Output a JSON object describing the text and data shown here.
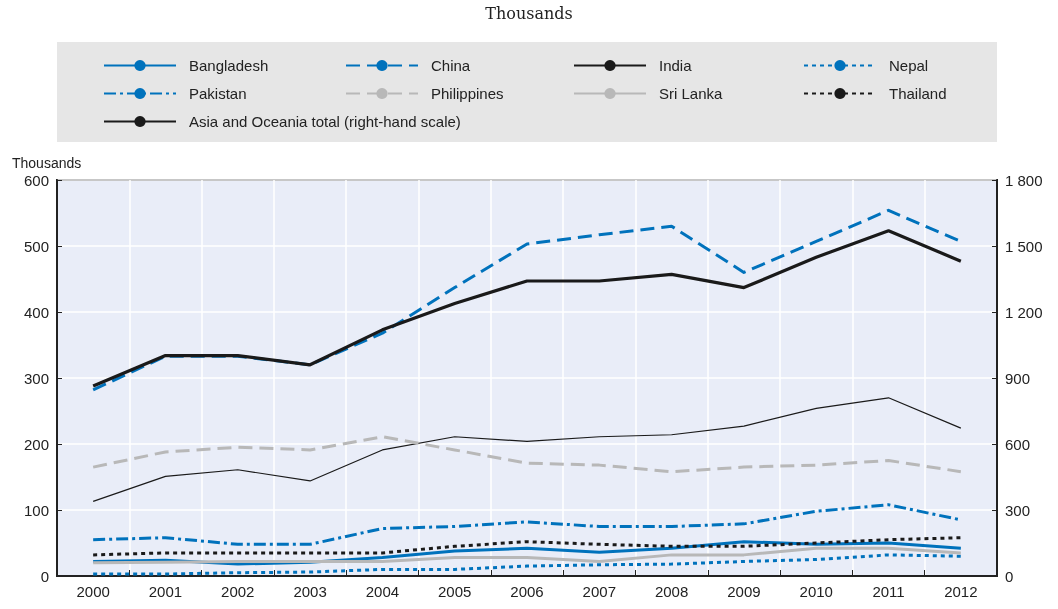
{
  "chart_data": {
    "type": "line",
    "subtitle": "Thousands",
    "ylabel": "Thousands",
    "categories": [
      "2000",
      "2001",
      "2002",
      "2003",
      "2004",
      "2005",
      "2006",
      "2007",
      "2008",
      "2009",
      "2010",
      "2011",
      "2012"
    ],
    "series": [
      {
        "name": "Bangladesh",
        "color": "#0072bc",
        "line_style": "solid",
        "values": [
          22,
          24,
          18,
          21,
          28,
          38,
          42,
          36,
          42,
          52,
          48,
          50,
          42
        ]
      },
      {
        "name": "China",
        "color": "#0072bc",
        "line_style": "dashed",
        "values": [
          282,
          333,
          333,
          320,
          368,
          437,
          503,
          517,
          530,
          460,
          507,
          554,
          507
        ]
      },
      {
        "name": "India",
        "color": "#1a1a1a",
        "line_style": "solid",
        "values": [
          113,
          151,
          161,
          144,
          191,
          211,
          204,
          211,
          214,
          227,
          254,
          270,
          224
        ]
      },
      {
        "name": "Nepal",
        "color": "#0072bc",
        "line_style": "dotted",
        "values": [
          3,
          3,
          5,
          6,
          10,
          10,
          15,
          17,
          18,
          22,
          25,
          32,
          30
        ]
      },
      {
        "name": "Pakistan",
        "color": "#0072bc",
        "line_style": "dashdot",
        "values": [
          55,
          58,
          48,
          48,
          72,
          75,
          82,
          75,
          75,
          79,
          98,
          108,
          85
        ]
      },
      {
        "name": "Philippines",
        "color": "#b8b8b8",
        "line_style": "dashed",
        "values": [
          165,
          188,
          195,
          191,
          211,
          191,
          171,
          168,
          158,
          165,
          168,
          175,
          158
        ]
      },
      {
        "name": "Sri Lanka",
        "color": "#b8b8b8",
        "line_style": "solid",
        "values": [
          20,
          21,
          22,
          22,
          22,
          28,
          28,
          22,
          32,
          32,
          42,
          42,
          35
        ]
      },
      {
        "name": "Thailand",
        "color": "#1a1a1a",
        "line_style": "dotted",
        "values": [
          32,
          35,
          35,
          35,
          35,
          45,
          52,
          48,
          45,
          45,
          50,
          55,
          58
        ]
      },
      {
        "name": "Asia and Oceania total (right-hand scale)",
        "color": "#1a1a1a",
        "line_style": "solid",
        "axis": "y2",
        "values": [
          864,
          1002,
          1002,
          960,
          1119,
          1239,
          1341,
          1341,
          1371,
          1311,
          1449,
          1569,
          1431
        ]
      }
    ],
    "ylim": [
      0,
      600
    ],
    "yticks": [
      0,
      100,
      200,
      300,
      400,
      500,
      600
    ],
    "y2lim": [
      0,
      1800
    ],
    "y2ticks": [
      0,
      300,
      600,
      900,
      {
        "value": 1200,
        "label": "1 200"
      },
      {
        "value": 1500,
        "label": "1 500"
      },
      {
        "value": 1800,
        "label": "1 800"
      }
    ],
    "grid": true,
    "legend": "top",
    "marker": "none"
  }
}
